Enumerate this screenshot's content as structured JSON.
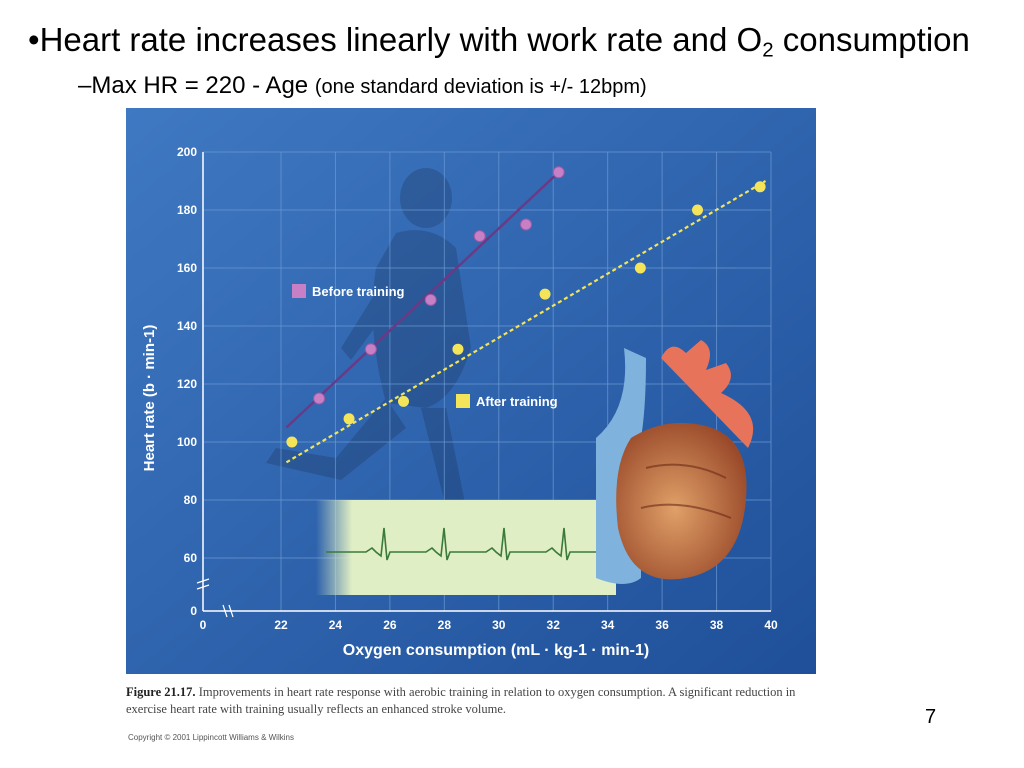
{
  "slide": {
    "bullet_marker": "•",
    "bullet_main_pre": "Heart rate increases linearly with work rate and O",
    "bullet_main_sub": "2",
    "bullet_main_post": " consumption",
    "sub_bullet_marker": "–",
    "sub_bullet_main": "Max HR = 220 - Age ",
    "sub_bullet_small": "(one standard deviation is +/- 12bpm)",
    "page_number": "7"
  },
  "figure": {
    "caption_label": "Figure 21.17.",
    "caption_text": " Improvements in heart rate response with aerobic training in relation to oxygen consumption. A significant reduction in exercise heart rate with training usually reflects an enhanced stroke volume.",
    "copyright": "Copyright © 2001 Lippincott Williams & Wilkins"
  },
  "colors": {
    "panel_bg": "#2a5ea8",
    "plot_bg": "#3e78bf",
    "grid": "#6c9ad4",
    "before": "#c77fc6",
    "before_line": "#6a3a86",
    "after": "#f3e45a",
    "ecg_bg": "#dfeec4",
    "ecg_line": "#3a7a3a"
  },
  "chart_data": {
    "type": "scatter",
    "xlabel": "Oxygen consumption (mL · kg-1 · min-1)",
    "ylabel": "Heart rate (b · min-1)",
    "xlim": [
      0,
      40
    ],
    "ylim": [
      0,
      200
    ],
    "x_ticks": [
      0,
      22,
      24,
      26,
      28,
      30,
      32,
      34,
      36,
      38,
      40
    ],
    "y_ticks": [
      0,
      60,
      80,
      100,
      120,
      140,
      160,
      180,
      200
    ],
    "axis_break_x": true,
    "axis_break_y": true,
    "grid": true,
    "legend_position": "inside-left",
    "series": [
      {
        "name": "Before training",
        "marker": "square",
        "points": [
          [
            23.4,
            115
          ],
          [
            25.3,
            132
          ],
          [
            27.5,
            149
          ],
          [
            29.3,
            171
          ],
          [
            31.0,
            175
          ],
          [
            32.2,
            193
          ]
        ],
        "fit_line": [
          [
            22.2,
            105
          ],
          [
            32.2,
            193
          ]
        ]
      },
      {
        "name": "After training",
        "marker": "circle",
        "points": [
          [
            22.4,
            100
          ],
          [
            24.5,
            108
          ],
          [
            26.5,
            114
          ],
          [
            28.5,
            132
          ],
          [
            31.7,
            151
          ],
          [
            35.2,
            160
          ],
          [
            37.3,
            180
          ],
          [
            39.6,
            188
          ]
        ],
        "fit_line": [
          [
            22.2,
            93
          ],
          [
            39.8,
            190
          ]
        ]
      }
    ]
  }
}
